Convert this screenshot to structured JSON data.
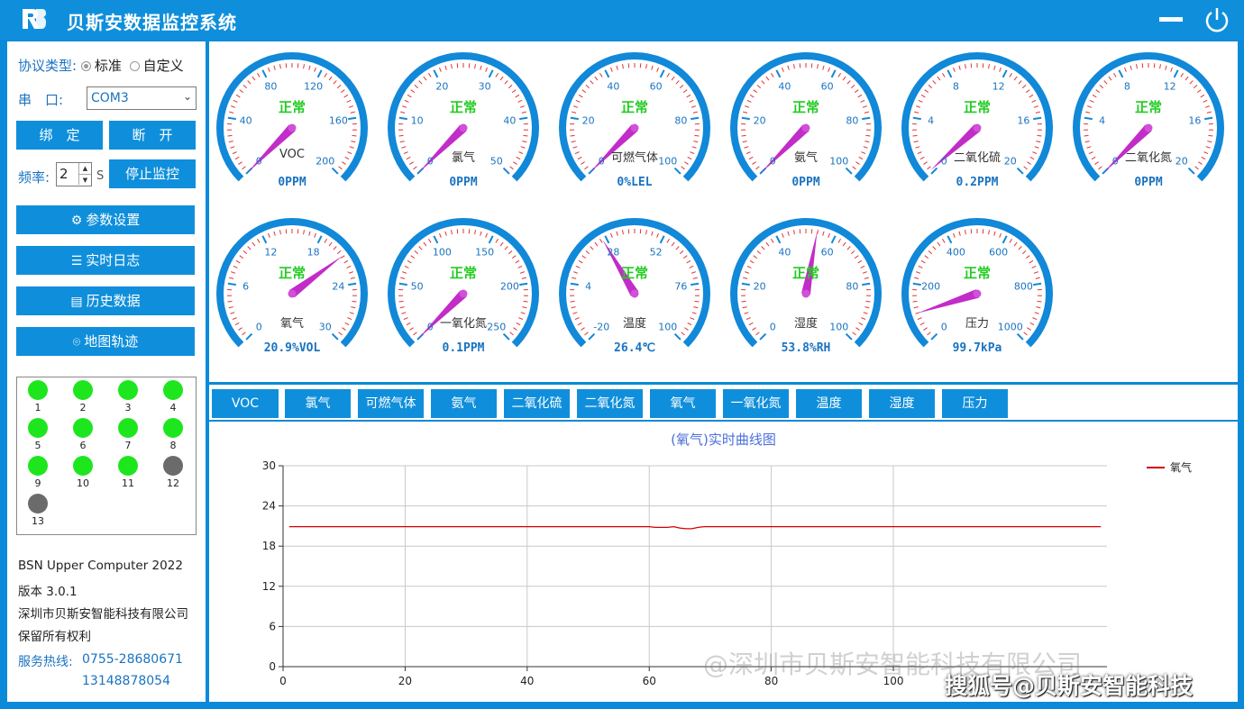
{
  "app": {
    "title": "贝斯安数据监控系统"
  },
  "sidebar": {
    "protocol_label": "协议类型:",
    "protocol_options": [
      "标准",
      "自定义"
    ],
    "port_label": "串　口:",
    "port_value": "COM3",
    "bind_label": "绑　定",
    "disconnect_label": "断　开",
    "freq_label": "频率:",
    "freq_value": "2",
    "freq_unit": "S",
    "stop_label": "停止监控",
    "menu": [
      {
        "label": "参数设置",
        "icon": "gear-icon"
      },
      {
        "label": "实时日志",
        "icon": "list-icon"
      },
      {
        "label": "历史数据",
        "icon": "document-icon"
      },
      {
        "label": "地图轨迹",
        "icon": "map-pin-icon"
      }
    ],
    "devices": [
      {
        "id": "1",
        "status": "online"
      },
      {
        "id": "2",
        "status": "online"
      },
      {
        "id": "3",
        "status": "online"
      },
      {
        "id": "4",
        "status": "online"
      },
      {
        "id": "5",
        "status": "online"
      },
      {
        "id": "6",
        "status": "online"
      },
      {
        "id": "7",
        "status": "online"
      },
      {
        "id": "8",
        "status": "online"
      },
      {
        "id": "9",
        "status": "online"
      },
      {
        "id": "10",
        "status": "online"
      },
      {
        "id": "11",
        "status": "online"
      },
      {
        "id": "12",
        "status": "offline"
      },
      {
        "id": "13",
        "status": "offline"
      }
    ],
    "colors": {
      "online": "#1ee61e",
      "offline": "#6b6b6b"
    },
    "info": [
      "BSN Upper Computer 2022",
      "版本 3.0.1",
      "深圳市贝斯安智能科技有限公司",
      "保留所有权利"
    ],
    "hotline_label": "服务热线:",
    "hotline_numbers": [
      "0755-28680671",
      "13148878054"
    ]
  },
  "gauges": [
    {
      "name": "VOC",
      "status": "正常",
      "reading": "0PPM",
      "min": 0,
      "max": 200,
      "ticks": [
        "0",
        "40",
        "80",
        "120",
        "160",
        "200"
      ],
      "value": 0
    },
    {
      "name": "氯气",
      "status": "正常",
      "reading": "0PPM",
      "min": 0,
      "max": 50,
      "ticks": [
        "0",
        "10",
        "20",
        "30",
        "40",
        "50"
      ],
      "value": 0
    },
    {
      "name": "可燃气体",
      "status": "正常",
      "reading": "0%LEL",
      "min": 0,
      "max": 100,
      "ticks": [
        "0",
        "20",
        "40",
        "60",
        "80",
        "100"
      ],
      "value": 0
    },
    {
      "name": "氨气",
      "status": "正常",
      "reading": "0PPM",
      "min": 0,
      "max": 100,
      "ticks": [
        "0",
        "20",
        "40",
        "60",
        "80",
        "100"
      ],
      "value": 0
    },
    {
      "name": "二氧化硫",
      "status": "正常",
      "reading": "0.2PPM",
      "min": 0,
      "max": 20,
      "ticks": [
        "0",
        "4",
        "8",
        "12",
        "16",
        "20"
      ],
      "value": 0.2
    },
    {
      "name": "二氧化氮",
      "status": "正常",
      "reading": "0PPM",
      "min": 0,
      "max": 20,
      "ticks": [
        "0",
        "4",
        "8",
        "12",
        "16",
        "20"
      ],
      "value": 0
    },
    {
      "name": "氧气",
      "status": "正常",
      "reading": "20.9%VOL",
      "min": 0,
      "max": 30,
      "ticks": [
        "0",
        "6",
        "12",
        "18",
        "24",
        "30"
      ],
      "value": 20.9
    },
    {
      "name": "一氧化氮",
      "status": "正常",
      "reading": "0.1PPM",
      "min": 0,
      "max": 250,
      "ticks": [
        "0",
        "50",
        "100",
        "150",
        "200",
        "250"
      ],
      "value": 0.1
    },
    {
      "name": "温度",
      "status": "正常",
      "reading": "26.4℃",
      "min": -20,
      "max": 100,
      "ticks": [
        "-20",
        "4",
        "28",
        "52",
        "76",
        "100"
      ],
      "value": 26.4
    },
    {
      "name": "湿度",
      "status": "正常",
      "reading": "53.8%RH",
      "min": 0,
      "max": 100,
      "ticks": [
        "0",
        "20",
        "40",
        "60",
        "80",
        "100"
      ],
      "value": 53.8
    },
    {
      "name": "压力",
      "status": "正常",
      "reading": "99.7kPa",
      "min": 0,
      "max": 1000,
      "ticks": [
        "0",
        "200",
        "400",
        "600",
        "800",
        "1000"
      ],
      "value": 99.7
    }
  ],
  "tabs": [
    "VOC",
    "氯气",
    "可燃气体",
    "氨气",
    "二氧化硫",
    "二氧化氮",
    "氧气",
    "一氧化氮",
    "温度",
    "湿度",
    "压力"
  ],
  "chart_data": {
    "type": "line",
    "title": "(氧气)实时曲线图",
    "xlabel": "",
    "ylabel": "",
    "xlim": [
      0,
      135
    ],
    "ylim": [
      0,
      30
    ],
    "xticks": [
      0,
      20,
      40,
      60,
      80,
      100
    ],
    "yticks": [
      0,
      6,
      12,
      18,
      24,
      30
    ],
    "grid": true,
    "legend": "top-right",
    "series": [
      {
        "name": "氧气",
        "color": "#d10000",
        "x": [
          1,
          60,
          61,
          62,
          63,
          64,
          65,
          66,
          67,
          68,
          69,
          134
        ],
        "y": [
          20.9,
          20.9,
          20.8,
          20.8,
          20.8,
          20.9,
          20.7,
          20.6,
          20.6,
          20.8,
          20.9,
          20.9
        ]
      }
    ]
  },
  "watermark": {
    "line1": "@深圳市贝斯安智能科技有限公司",
    "line2": "搜狐号@贝斯安智能科技"
  }
}
